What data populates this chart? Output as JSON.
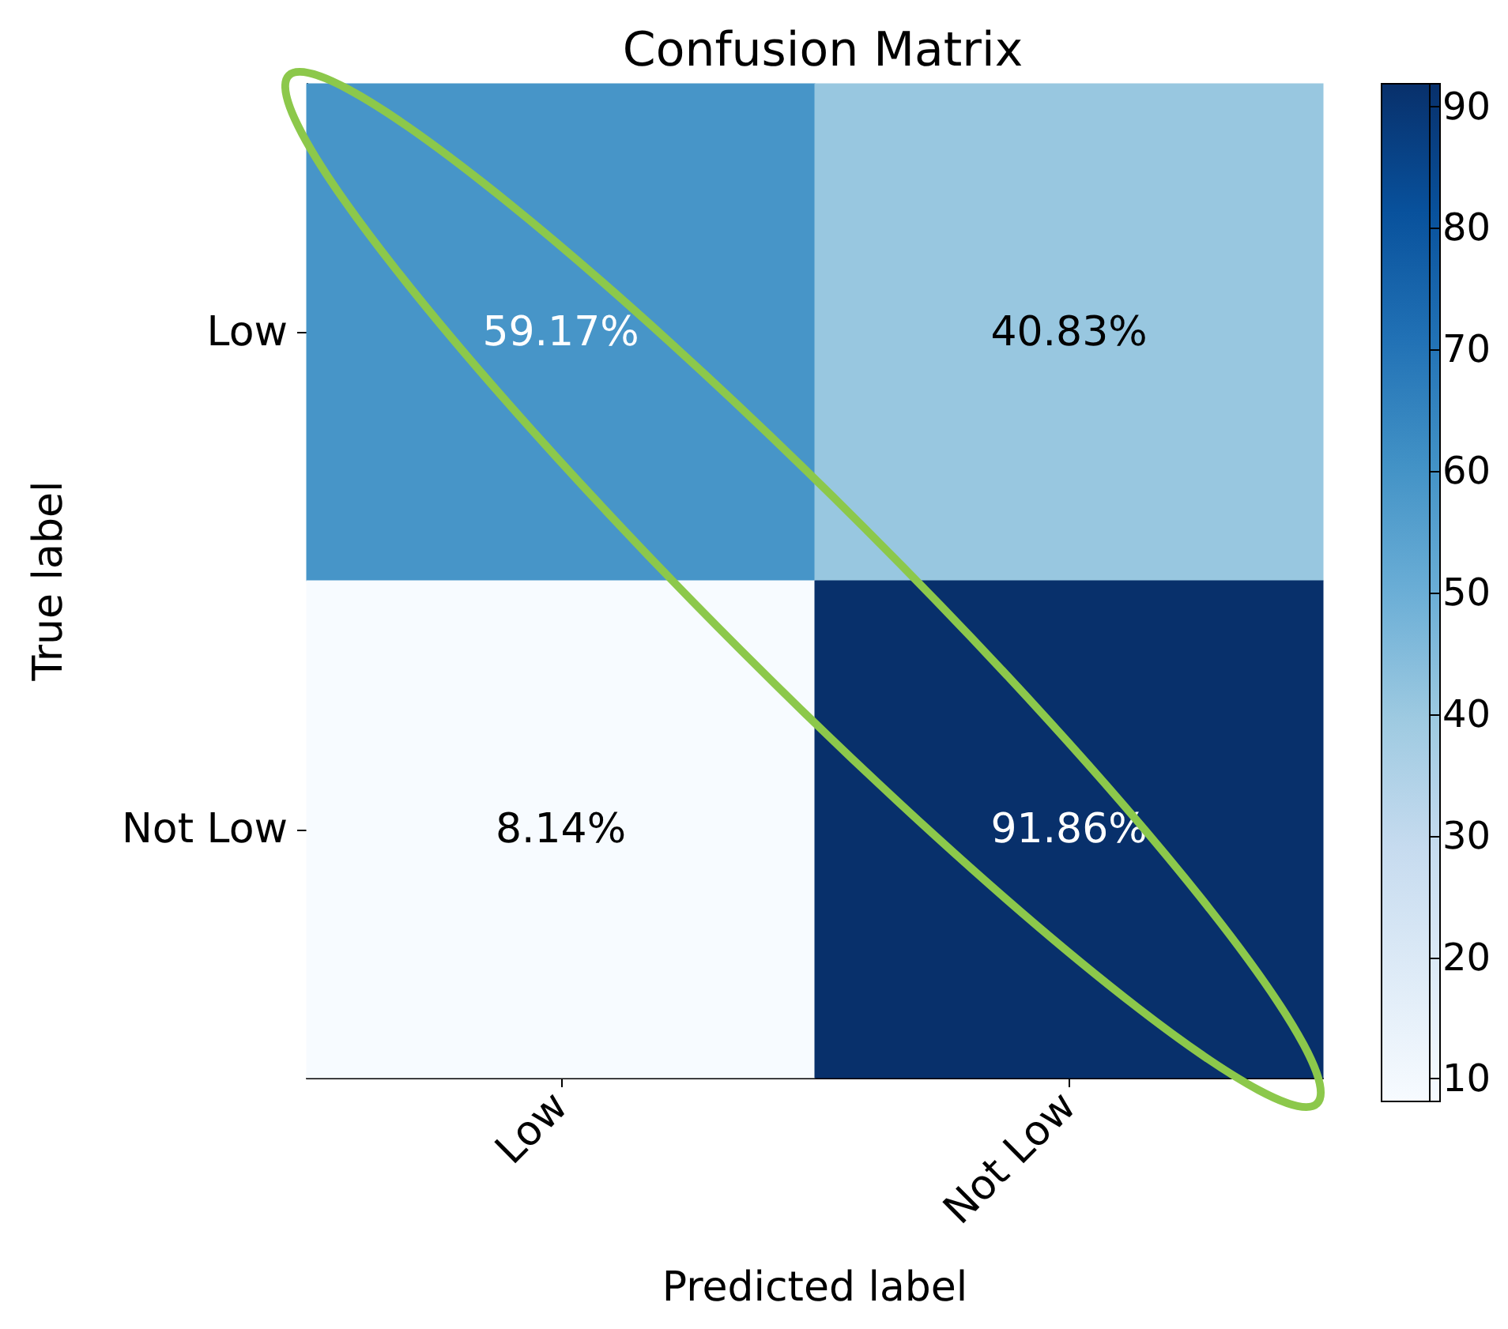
{
  "chart_data": {
    "type": "heatmap",
    "title": "Confusion Matrix",
    "xlabel": "Predicted label",
    "ylabel": "True label",
    "categories": [
      "Low",
      "Not Low"
    ],
    "y_categories": [
      "Low",
      "Not Low"
    ],
    "cells": [
      [
        59.17,
        40.83
      ],
      [
        8.14,
        91.86
      ]
    ],
    "cell_labels": [
      [
        "59.17%",
        "40.83%"
      ],
      [
        "8.14%",
        "91.86%"
      ]
    ],
    "clim": [
      8.14,
      91.86
    ],
    "cticks": [
      10,
      20,
      30,
      40,
      50,
      60,
      70,
      80,
      90
    ]
  }
}
